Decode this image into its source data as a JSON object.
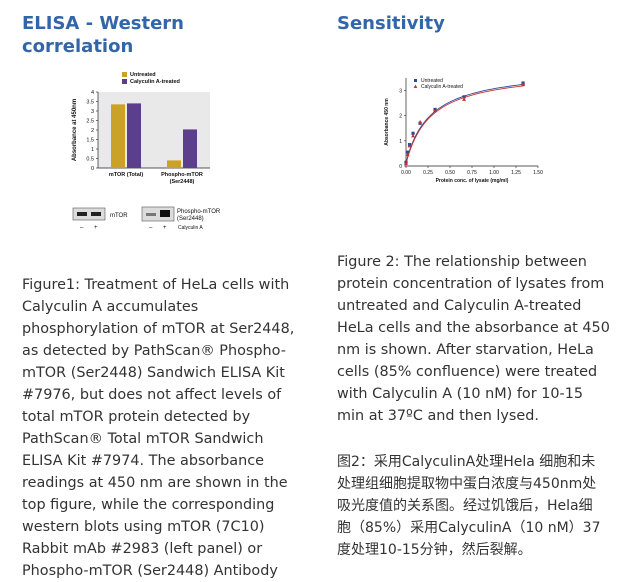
{
  "left": {
    "title_line1": "ELISA - Western",
    "title_line2": "correlation",
    "caption_lines": [
      "Figure1: Treatment of HeLa cells with",
      "Calyculin A accumulates",
      "phosphorylation of mTOR at Ser2448,",
      "as detected by PathScan® Phospho-",
      "mTOR (Ser2448) Sandwich ELISA Kit",
      "#7976, but does not affect levels of",
      "total mTOR protein detected by",
      "PathScan® Total mTOR Sandwich",
      "ELISA Kit #7974. The absorbance",
      "readings at 450 nm are shown in the",
      "top figure, while the corresponding",
      "western blots using mTOR (7C10)",
      "Rabbit mAb #2983 (left panel) or",
      "Phospho-mTOR (Ser2448) Antibody"
    ],
    "blot": {
      "label_left": "mTOR",
      "label_right_1": "Phospho-mTOR",
      "label_right_2": "(Ser2448)",
      "lane_minus": "–",
      "lane_plus": "+",
      "treatment_label": "Calyculin A"
    }
  },
  "right": {
    "title": "Sensitivity",
    "caption_lines": [
      "Figure 2: The relationship between",
      "protein concentration of lysates from",
      "untreated and Calyculin A-treated",
      "HeLa cells and the absorbance at 450",
      "nm is shown. After starvation, HeLa",
      "cells (85% confluence) were treated",
      "with Calyculin A (10 nM) for 10-15",
      "min at 37ºC and then lysed."
    ],
    "caption_cn_lines": [
      "图2：采用CalyculinA处理Hela 细胞和未",
      "处理组细胞提取物中蛋白浓度与450nm处",
      "吸光度值的关系图。经过饥饿后，Hela细",
      "胞（85%）采用CalyculinA（10 nM）37",
      "度处理10-15分钟，然后裂解。"
    ]
  },
  "colors": {
    "heading": "#3366a8",
    "untreated": "#c9a227",
    "calyculin": "#5b3e8c",
    "plot_bg": "#e9e9ea",
    "scatter_untreated": "#2b4a9b",
    "scatter_calyculin": "#c8302f"
  },
  "chart_data": [
    {
      "type": "bar",
      "ylabel": "Absorbance at 450nm",
      "categories": [
        "mTOR (Total)",
        "Phospho-mTOR|(Ser2448)"
      ],
      "series": [
        {
          "name": "Untreated",
          "values": [
            3.35,
            0.4
          ]
        },
        {
          "name": "Calyculin A-treated",
          "values": [
            3.4,
            2.03
          ]
        }
      ],
      "ylim": [
        0,
        4
      ],
      "yticks": [
        0,
        0.5,
        1,
        1.5,
        2,
        2.5,
        3,
        3.5,
        4
      ],
      "grid": false,
      "legend": "top-left"
    },
    {
      "type": "scatter",
      "xlabel": "Protein conc. of lysate (mg/ml)",
      "ylabel": "Absorbance 450 nm",
      "xlim": [
        0,
        1.5
      ],
      "ylim": [
        0,
        3.5
      ],
      "xticks": [
        0.0,
        0.25,
        0.5,
        0.75,
        1.0,
        1.25,
        1.5
      ],
      "yticks": [
        0,
        1,
        2,
        3
      ],
      "legend": "top-left",
      "series": [
        {
          "name": "Untreated",
          "marker": "square",
          "x": [
            0.0,
            0.02,
            0.04,
            0.08,
            0.16,
            0.33,
            0.66,
            1.33
          ],
          "y": [
            0.15,
            0.55,
            0.85,
            1.3,
            1.7,
            2.25,
            2.75,
            3.3
          ]
        },
        {
          "name": "Calyculin A-treated",
          "marker": "triangle",
          "x": [
            0.0,
            0.02,
            0.04,
            0.08,
            0.16,
            0.33,
            0.66,
            1.33
          ],
          "y": [
            0.1,
            0.45,
            0.8,
            1.2,
            1.75,
            2.2,
            2.65,
            3.25
          ]
        }
      ]
    }
  ]
}
